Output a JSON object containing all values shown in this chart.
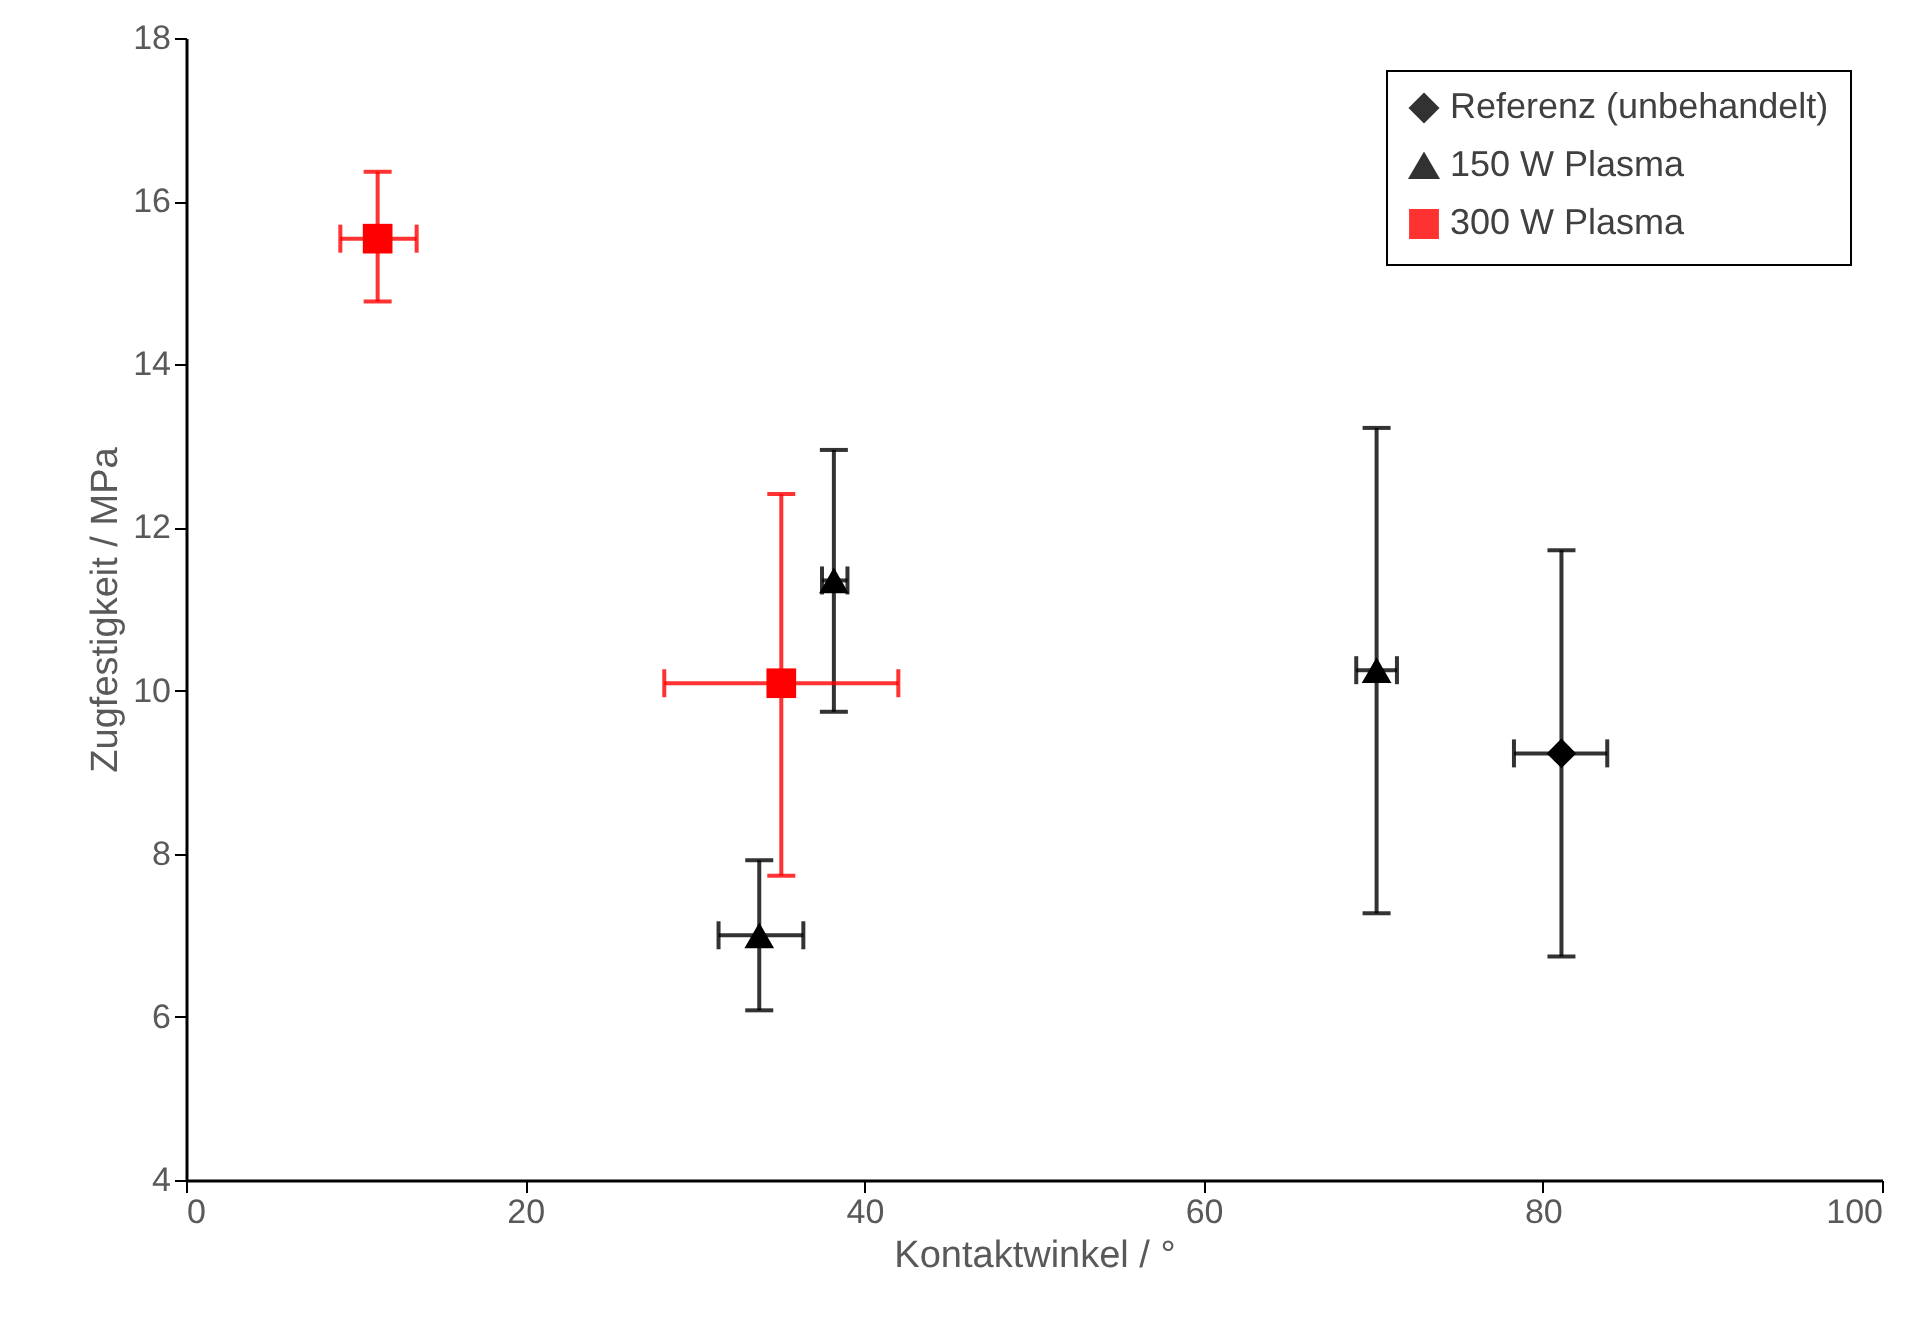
{
  "chart_data": {
    "type": "scatter",
    "xlabel": "Kontaktwinkel / °",
    "ylabel": "Zugfestigkeit / MPa",
    "xlim": [
      0,
      100
    ],
    "xticks": [
      0,
      20,
      40,
      60,
      80,
      100
    ],
    "ylim": [
      4,
      18
    ],
    "yticks": [
      4,
      6,
      8,
      10,
      12,
      14,
      16,
      18
    ],
    "grid": false,
    "legend": "top right",
    "series": [
      {
        "name": "Referenz (unbehandelt)",
        "color": "#000000",
        "marker": "diamond",
        "x": [
          81.1
        ],
        "values": [
          9.23
        ],
        "errors": [
          [
            6.74,
            11.72
          ]
        ],
        "xerrors": [
          [
            78.3,
            83.8
          ]
        ]
      },
      {
        "name": "150 W Plasma",
        "color": "#000000",
        "marker": "triangle",
        "x": [
          38.2,
          33.8,
          70.2
        ],
        "values": [
          11.35,
          7.0,
          10.25
        ],
        "errors": [
          [
            9.74,
            12.95
          ],
          [
            6.08,
            7.92
          ],
          [
            7.27,
            13.22
          ]
        ],
        "xerrors": [
          [
            37.5,
            39.0
          ],
          [
            31.4,
            36.4
          ],
          [
            69.0,
            71.4
          ]
        ]
      },
      {
        "name": "300 W Plasma",
        "color": "#ff0000",
        "marker": "square",
        "x": [
          11.3,
          35.1
        ],
        "values": [
          15.54,
          10.09
        ],
        "errors": [
          [
            14.77,
            16.36
          ],
          [
            7.73,
            12.41
          ]
        ],
        "xerrors": [
          [
            9.1,
            13.6
          ],
          [
            28.2,
            42.0
          ]
        ]
      }
    ]
  }
}
